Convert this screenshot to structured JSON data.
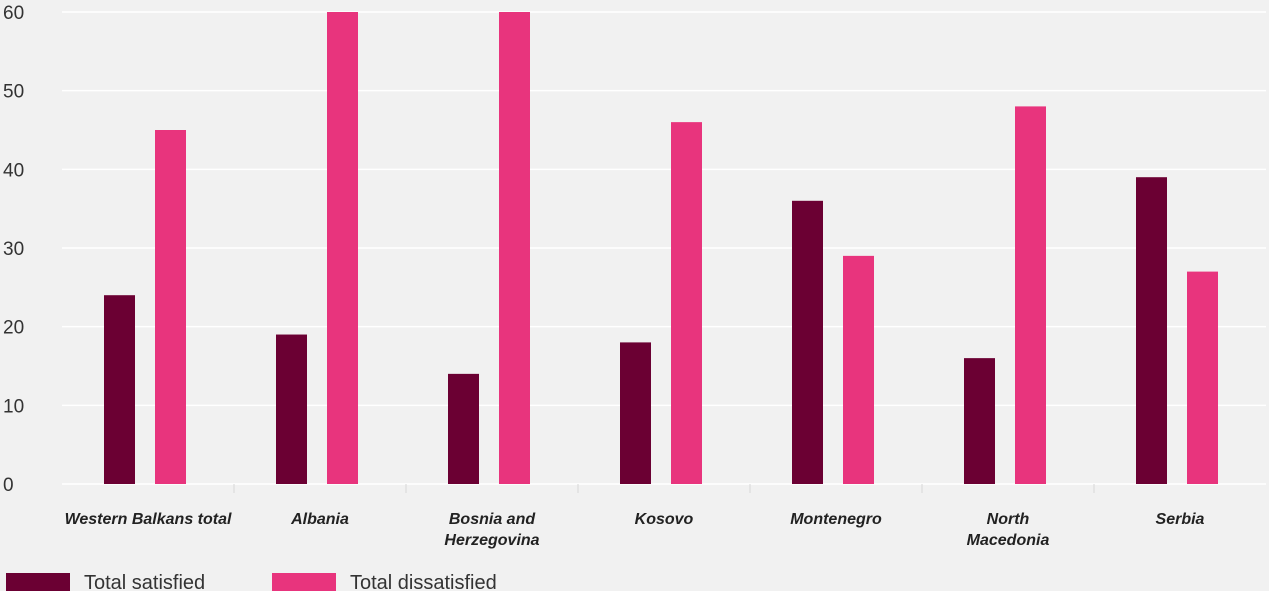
{
  "chart_data": {
    "type": "bar",
    "categories": [
      [
        "Western Balkans total"
      ],
      [
        "Albania"
      ],
      [
        "Bosnia and",
        "Herzegovina"
      ],
      [
        "Kosovo"
      ],
      [
        "Montenegro"
      ],
      [
        "North",
        "Macedonia"
      ],
      [
        "Serbia"
      ]
    ],
    "series": [
      {
        "name": "Total satisfied",
        "color": "#6b0033",
        "values": [
          24,
          19,
          14,
          18,
          36,
          16,
          39
        ]
      },
      {
        "name": "Total dissatisfied",
        "color": "#e8347d",
        "values": [
          45,
          60,
          60,
          46,
          29,
          48,
          27
        ]
      }
    ],
    "ylim": [
      0,
      60
    ],
    "yticks": [
      0,
      10,
      20,
      30,
      40,
      50,
      60
    ],
    "grid": true,
    "legend_position": "bottom-left"
  }
}
